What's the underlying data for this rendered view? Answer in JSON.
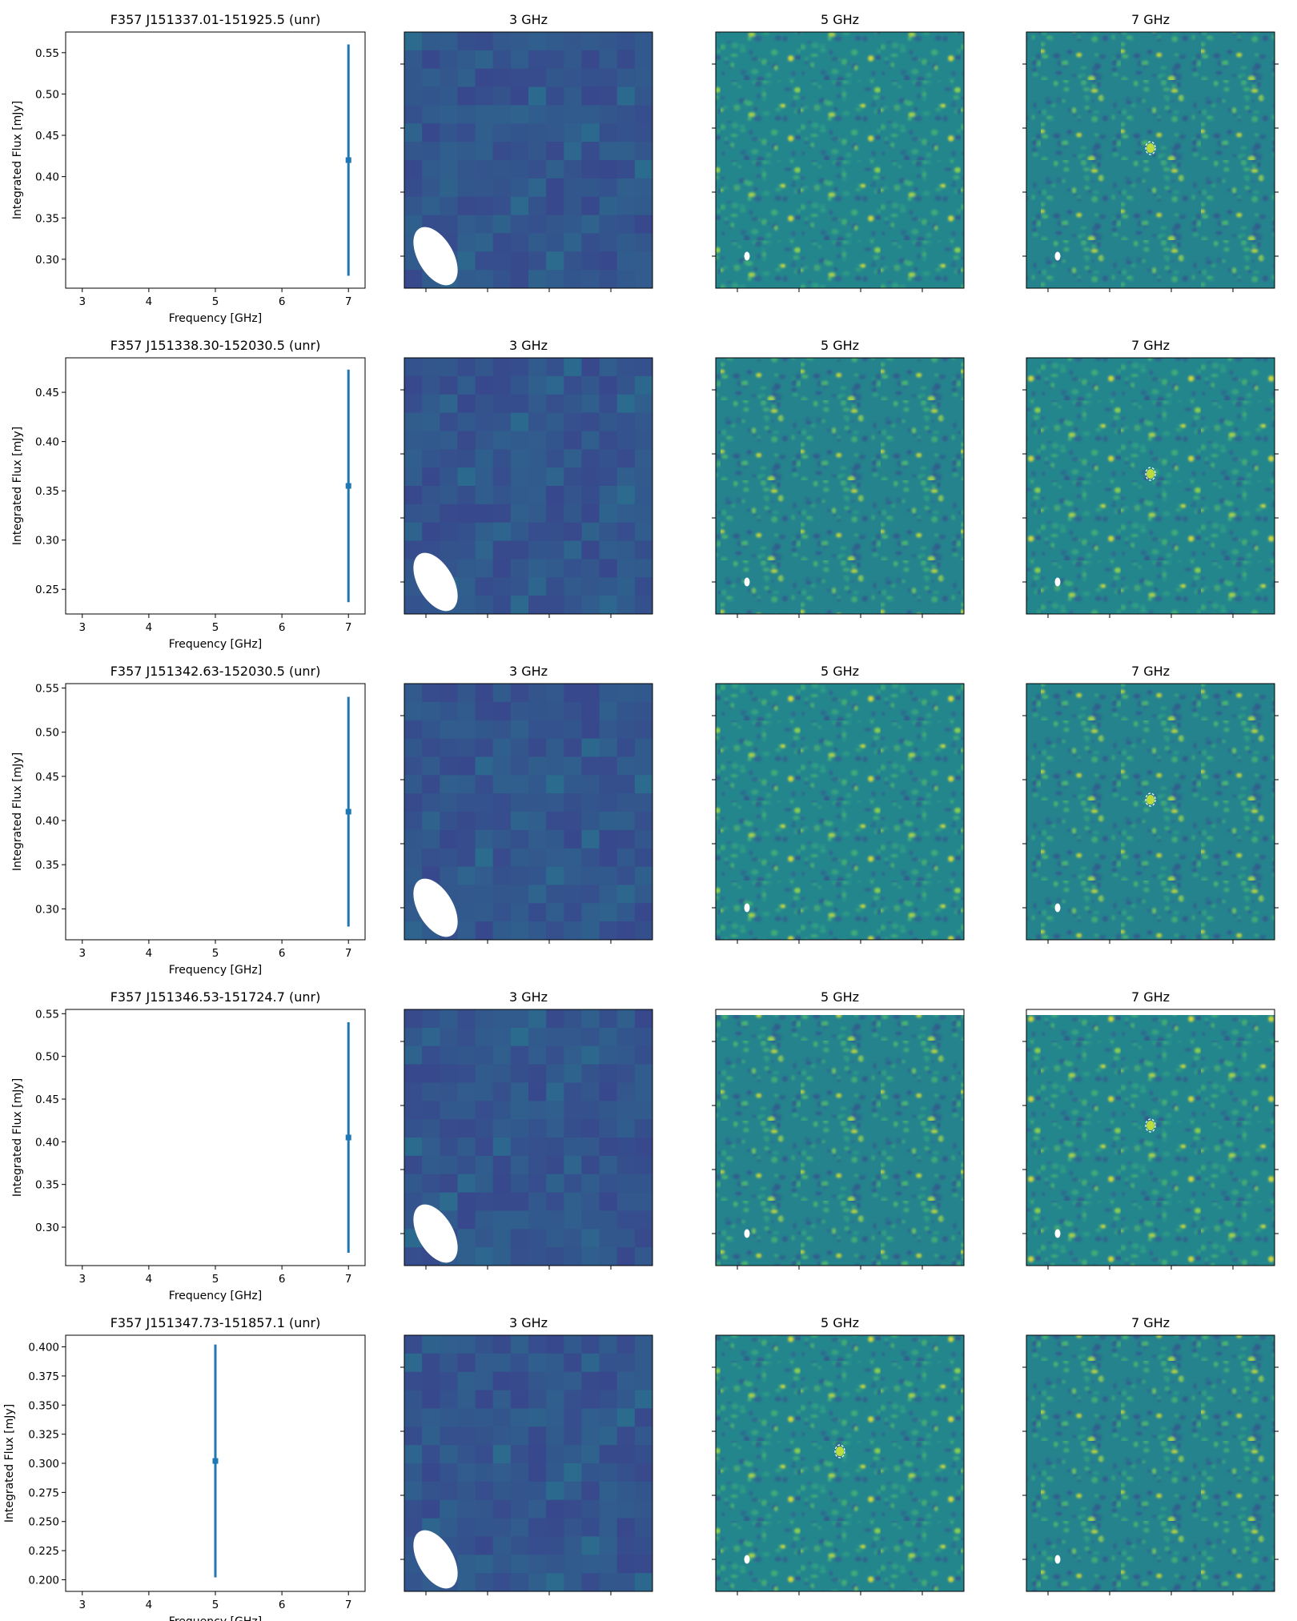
{
  "colors": {
    "series": "#1f77b4",
    "map_low": "#3b3f8c",
    "map_mid": "#21918c",
    "map_high": "#fde725",
    "beam": "#ffffff",
    "source_marker": "#ffffff"
  },
  "panel_titles": {
    "ghz3": "3 GHz",
    "ghz5": "5 GHz",
    "ghz7": "7 GHz"
  },
  "axis": {
    "xlabel": "Frequency [GHz]",
    "ylabel": "Integrated Flux [mJy]"
  },
  "chart_data": [
    {
      "type": "scatter",
      "title": "F357 J151337.01-151925.5 (unr)",
      "xlabel": "Frequency [GHz]",
      "ylabel": "Integrated Flux [mJy]",
      "xlim": [
        2.75,
        7.25
      ],
      "ylim": [
        0.265,
        0.575
      ],
      "xticks": [
        "3",
        "4",
        "5",
        "6",
        "7"
      ],
      "yticks": [
        "0.30",
        "0.35",
        "0.40",
        "0.45",
        "0.50",
        "0.55"
      ],
      "points": [
        {
          "x": 7,
          "y": 0.42,
          "err": 0.14
        }
      ],
      "maps": {
        "ghz3": {
          "map_style": "coarse",
          "source_marked": false
        },
        "ghz5": {
          "map_style": "fine",
          "source_marked": false
        },
        "ghz7": {
          "map_style": "fine",
          "source_marked": true
        }
      }
    },
    {
      "type": "scatter",
      "title": "F357 J151338.30-152030.5 (unr)",
      "xlabel": "Frequency [GHz]",
      "ylabel": "Integrated Flux [mJy]",
      "xlim": [
        2.75,
        7.25
      ],
      "ylim": [
        0.225,
        0.485
      ],
      "xticks": [
        "3",
        "4",
        "5",
        "6",
        "7"
      ],
      "yticks": [
        "0.25",
        "0.30",
        "0.35",
        "0.40",
        "0.45"
      ],
      "points": [
        {
          "x": 7,
          "y": 0.355,
          "err": 0.118
        }
      ],
      "maps": {
        "ghz3": {
          "map_style": "coarse",
          "source_marked": false
        },
        "ghz5": {
          "map_style": "fine",
          "source_marked": false
        },
        "ghz7": {
          "map_style": "fine",
          "source_marked": true
        }
      }
    },
    {
      "type": "scatter",
      "title": "F357 J151342.63-152030.5 (unr)",
      "xlabel": "Frequency [GHz]",
      "ylabel": "Integrated Flux [mJy]",
      "xlim": [
        2.75,
        7.25
      ],
      "ylim": [
        0.265,
        0.555
      ],
      "xticks": [
        "3",
        "4",
        "5",
        "6",
        "7"
      ],
      "yticks": [
        "0.30",
        "0.35",
        "0.40",
        "0.45",
        "0.50",
        "0.55"
      ],
      "points": [
        {
          "x": 7,
          "y": 0.41,
          "err": 0.13
        }
      ],
      "maps": {
        "ghz3": {
          "map_style": "coarse",
          "source_marked": false
        },
        "ghz5": {
          "map_style": "fine",
          "source_marked": false
        },
        "ghz7": {
          "map_style": "fine",
          "source_marked": true
        }
      }
    },
    {
      "type": "scatter",
      "title": "F357 J151346.53-151724.7 (unr)",
      "xlabel": "Frequency [GHz]",
      "ylabel": "Integrated Flux [mJy]",
      "xlim": [
        2.75,
        7.25
      ],
      "ylim": [
        0.255,
        0.555
      ],
      "xticks": [
        "3",
        "4",
        "5",
        "6",
        "7"
      ],
      "yticks": [
        "0.30",
        "0.35",
        "0.40",
        "0.45",
        "0.50",
        "0.55"
      ],
      "points": [
        {
          "x": 7,
          "y": 0.405,
          "err": 0.135
        }
      ],
      "maps": {
        "ghz3": {
          "map_style": "coarse",
          "source_marked": false
        },
        "ghz5": {
          "map_style": "fine",
          "source_marked": false,
          "top_gap": true
        },
        "ghz7": {
          "map_style": "fine",
          "source_marked": true,
          "top_gap": true
        }
      }
    },
    {
      "type": "scatter",
      "title": "F357 J151347.73-151857.1 (unr)",
      "xlabel": "Frequency [GHz]",
      "ylabel": "Integrated Flux [mJy]",
      "xlim": [
        2.75,
        7.25
      ],
      "ylim": [
        0.19,
        0.41
      ],
      "xticks": [
        "3",
        "4",
        "5",
        "6",
        "7"
      ],
      "yticks": [
        "0.200",
        "0.225",
        "0.250",
        "0.275",
        "0.300",
        "0.325",
        "0.350",
        "0.375",
        "0.400"
      ],
      "points": [
        {
          "x": 5,
          "y": 0.302,
          "err": 0.1
        }
      ],
      "maps": {
        "ghz3": {
          "map_style": "coarse",
          "source_marked": false
        },
        "ghz5": {
          "map_style": "fine",
          "source_marked": true
        },
        "ghz7": {
          "map_style": "fine",
          "source_marked": false
        }
      }
    }
  ]
}
